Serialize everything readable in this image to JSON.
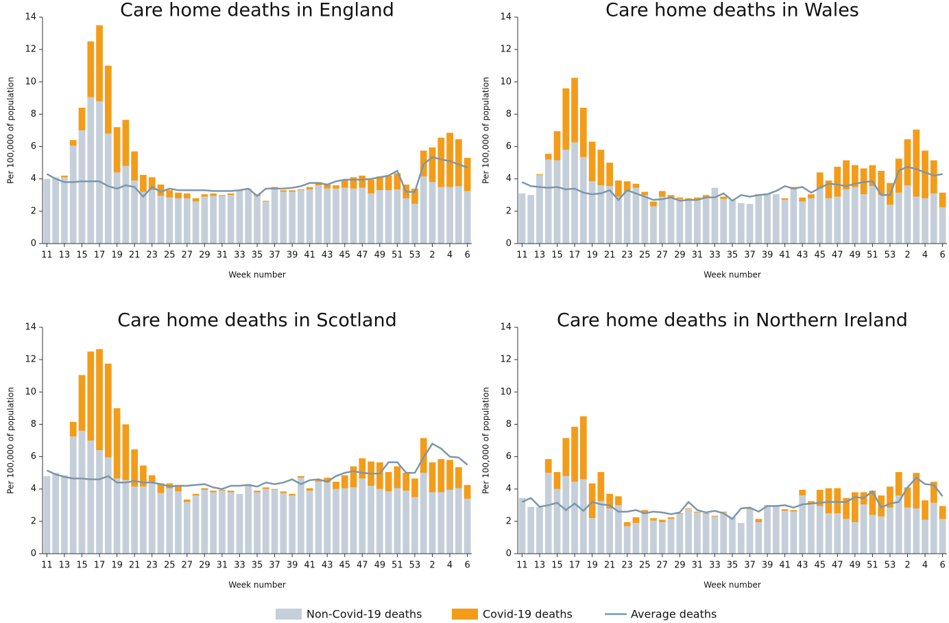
{
  "chart_data": [
    {
      "type": "bar",
      "title": "Care home deaths in England",
      "xlabel": "Week number",
      "ylabel": "Per 100,000 of population",
      "categories": [
        "11",
        null,
        "13",
        null,
        "15",
        null,
        "17",
        null,
        "19",
        null,
        "21",
        null,
        "23",
        null,
        "25",
        null,
        "27",
        null,
        "29",
        null,
        "31",
        null,
        "33",
        null,
        "35",
        null,
        "37",
        null,
        "39",
        null,
        "41",
        null,
        "43",
        null,
        "45",
        null,
        "47",
        null,
        "49",
        null,
        "51",
        null,
        "53",
        null,
        "2",
        null,
        "4",
        null,
        "6"
      ],
      "ylim": [
        0,
        14
      ],
      "yticks": [
        0,
        2,
        4,
        6,
        8,
        10,
        12,
        14
      ],
      "series": [
        {
          "name": "Non-Covid-19 deaths",
          "color": "#c4cfda",
          "values": [
            4.0,
            4.1,
            4.1,
            6.05,
            7.0,
            9.05,
            8.8,
            6.8,
            4.4,
            4.8,
            3.9,
            3.2,
            3.3,
            2.95,
            2.85,
            2.8,
            2.8,
            2.6,
            2.9,
            2.95,
            2.95,
            3.0,
            3.25,
            3.4,
            2.95,
            2.6,
            3.4,
            3.2,
            3.2,
            3.3,
            3.35,
            3.6,
            3.4,
            3.4,
            3.45,
            3.4,
            3.45,
            3.1,
            3.3,
            3.3,
            3.35,
            2.8,
            2.45,
            4.15,
            3.8,
            3.5,
            3.5,
            3.55,
            3.25
          ]
        },
        {
          "name": "Covid-19 deaths",
          "color": "#f39c1a",
          "values": [
            0,
            0,
            0.1,
            0.35,
            1.4,
            3.45,
            4.7,
            4.2,
            2.8,
            2.85,
            1.8,
            1.05,
            0.8,
            0.7,
            0.45,
            0.35,
            0.3,
            0.2,
            0.15,
            0.15,
            0.05,
            0.1,
            0.05,
            0,
            0.1,
            0.05,
            0.1,
            0.1,
            0.1,
            0.05,
            0.15,
            0.2,
            0.3,
            0.2,
            0.5,
            0.7,
            0.75,
            0.85,
            0.85,
            0.9,
            1.0,
            0.85,
            0.95,
            1.6,
            2.15,
            3.05,
            3.35,
            2.9,
            2.05
          ]
        },
        {
          "name": "Average deaths",
          "type": "line",
          "color": "#7b96aa",
          "values": [
            4.3,
            4.0,
            3.8,
            3.8,
            3.85,
            3.85,
            3.85,
            3.55,
            3.4,
            3.6,
            3.5,
            2.9,
            3.5,
            3.2,
            3.4,
            3.3,
            3.3,
            3.3,
            3.3,
            3.25,
            3.25,
            3.25,
            3.3,
            3.4,
            2.95,
            3.4,
            3.4,
            3.4,
            3.45,
            3.55,
            3.75,
            3.75,
            3.65,
            3.85,
            3.95,
            3.95,
            3.95,
            4.0,
            4.1,
            4.2,
            4.5,
            3.2,
            3.2,
            4.9,
            5.35,
            5.2,
            5.1,
            4.9,
            4.7
          ]
        }
      ]
    },
    {
      "type": "bar",
      "title": "Care home deaths in Wales",
      "xlabel": "Week number",
      "ylabel": "Per 100,000 of population",
      "categories": [
        "11",
        null,
        "13",
        null,
        "15",
        null,
        "17",
        null,
        "19",
        null,
        "21",
        null,
        "23",
        null,
        "25",
        null,
        "27",
        null,
        "29",
        null,
        "31",
        null,
        "33",
        null,
        "35",
        null,
        "37",
        null,
        "39",
        null,
        "41",
        null,
        "43",
        null,
        "45",
        null,
        "47",
        null,
        "49",
        null,
        "51",
        null,
        "53",
        null,
        "2",
        null,
        "4",
        null,
        "6"
      ],
      "ylim": [
        0,
        14
      ],
      "yticks": [
        0,
        2,
        4,
        6,
        8,
        10,
        12,
        14
      ],
      "series": [
        {
          "color": "#c4cfda",
          "values": [
            3.1,
            3.0,
            4.25,
            5.2,
            5.15,
            5.8,
            6.25,
            5.35,
            3.85,
            3.6,
            3.55,
            2.9,
            3.2,
            3.45,
            3.0,
            2.3,
            2.9,
            2.85,
            2.75,
            2.65,
            2.75,
            2.8,
            3.45,
            2.75,
            2.7,
            2.5,
            2.45,
            3.0,
            3.05,
            3.05,
            2.7,
            3.35,
            2.6,
            2.8,
            3.4,
            2.8,
            2.9,
            3.35,
            3.5,
            3.05,
            3.55,
            3.0,
            2.4,
            3.15,
            3.6,
            2.9,
            2.8,
            3.1,
            2.25
          ]
        },
        {
          "color": "#f39c1a",
          "values": [
            0,
            0,
            0.05,
            0.35,
            1.8,
            3.8,
            4.0,
            3.05,
            2.45,
            2.2,
            1.45,
            1.0,
            0.65,
            0.25,
            0.2,
            0.3,
            0.35,
            0.15,
            0.1,
            0.15,
            0.1,
            0.2,
            0,
            0.15,
            0,
            0,
            0,
            0.05,
            0.05,
            0,
            0.1,
            0.15,
            0.25,
            0.25,
            1.0,
            1.1,
            1.85,
            1.8,
            1.35,
            1.6,
            1.3,
            1.5,
            1.35,
            2.1,
            2.85,
            4.15,
            2.95,
            2.05,
            0.9
          ]
        },
        {
          "type": "line",
          "color": "#7b96aa",
          "values": [
            3.8,
            3.55,
            3.5,
            3.45,
            3.5,
            3.35,
            3.4,
            3.15,
            3.05,
            3.1,
            3.3,
            2.7,
            3.3,
            3.1,
            2.9,
            2.7,
            2.75,
            2.85,
            2.65,
            2.7,
            2.7,
            2.85,
            2.85,
            3.1,
            2.65,
            3.0,
            2.9,
            3.0,
            3.05,
            3.25,
            3.55,
            3.4,
            3.5,
            3.15,
            3.45,
            3.7,
            3.65,
            3.55,
            3.7,
            3.8,
            3.85,
            3.0,
            3.0,
            4.5,
            4.75,
            4.6,
            4.4,
            4.2,
            4.3
          ]
        }
      ]
    },
    {
      "type": "bar",
      "title": "Care home deaths in Scotland",
      "xlabel": "Week number",
      "ylabel": "Per 100,000 of population",
      "categories": [
        "11",
        null,
        "13",
        null,
        "15",
        null,
        "17",
        null,
        "19",
        null,
        "21",
        null,
        "23",
        null,
        "25",
        null,
        "27",
        null,
        "29",
        null,
        "31",
        null,
        "33",
        null,
        "35",
        null,
        "37",
        null,
        "39",
        null,
        "41",
        null,
        "43",
        null,
        "45",
        null,
        "47",
        null,
        "49",
        null,
        "51",
        null,
        "53",
        null,
        "2",
        null,
        "4",
        null,
        "6"
      ],
      "ylim": [
        0,
        14
      ],
      "yticks": [
        0,
        2,
        4,
        6,
        8,
        10,
        12,
        14
      ],
      "series": [
        {
          "color": "#c4cfda",
          "values": [
            4.8,
            5.0,
            4.85,
            7.25,
            7.6,
            7.0,
            6.4,
            5.95,
            4.65,
            4.55,
            4.15,
            4.15,
            4.35,
            3.75,
            4.05,
            3.85,
            3.2,
            3.6,
            3.95,
            3.8,
            3.9,
            3.8,
            3.7,
            4.2,
            3.8,
            4.0,
            3.95,
            3.75,
            3.6,
            4.7,
            3.9,
            4.45,
            4.4,
            4.0,
            4.05,
            4.1,
            4.65,
            4.2,
            4.0,
            3.85,
            4.05,
            3.9,
            3.5,
            5.0,
            3.8,
            3.8,
            3.95,
            4.05,
            3.4
          ]
        },
        {
          "color": "#f39c1a",
          "values": [
            0,
            0,
            0,
            0.9,
            3.45,
            5.5,
            6.25,
            5.8,
            4.35,
            3.45,
            2.3,
            1.3,
            0.5,
            0.6,
            0.3,
            0.4,
            0.15,
            0.1,
            0.1,
            0.1,
            0.05,
            0.1,
            0,
            0.1,
            0.1,
            0.1,
            0.05,
            0.1,
            0.1,
            0.1,
            0.15,
            0.1,
            0.3,
            0.45,
            0.8,
            1.3,
            1.25,
            1.5,
            1.65,
            1.2,
            1.35,
            1.1,
            1.15,
            2.15,
            1.85,
            2.05,
            1.85,
            1.3,
            0.85
          ]
        },
        {
          "type": "line",
          "color": "#7b96aa",
          "values": [
            5.15,
            4.9,
            4.75,
            4.65,
            4.65,
            4.6,
            4.6,
            4.8,
            4.4,
            4.4,
            4.5,
            4.4,
            4.4,
            4.3,
            4.15,
            4.2,
            4.2,
            4.25,
            4.3,
            4.1,
            4.0,
            4.2,
            4.2,
            4.25,
            4.15,
            4.4,
            4.3,
            4.4,
            4.6,
            4.3,
            4.55,
            4.6,
            4.45,
            4.8,
            5.0,
            5.1,
            5.0,
            4.95,
            4.95,
            5.65,
            5.65,
            5.0,
            5.0,
            5.95,
            6.8,
            6.5,
            6.0,
            5.95,
            5.5
          ]
        }
      ]
    },
    {
      "type": "bar",
      "title": "Care home deaths in Northern Ireland",
      "xlabel": "Week number",
      "ylabel": "Per 100,000 of population",
      "categories": [
        "11",
        null,
        "13",
        null,
        "15",
        null,
        "17",
        null,
        "19",
        null,
        "21",
        null,
        "23",
        null,
        "25",
        null,
        "27",
        null,
        "29",
        null,
        "31",
        null,
        "33",
        null,
        "35",
        null,
        "37",
        null,
        "39",
        null,
        "41",
        null,
        "43",
        null,
        "45",
        null,
        "47",
        null,
        "49",
        null,
        "51",
        null,
        "53",
        null,
        "2",
        null,
        "4",
        null,
        "6"
      ],
      "ylim": [
        0,
        14
      ],
      "yticks": [
        0,
        2,
        4,
        6,
        8,
        10,
        12,
        14
      ],
      "series": [
        {
          "color": "#c4cfda",
          "values": [
            3.45,
            2.9,
            2.9,
            5.0,
            4.0,
            4.8,
            4.45,
            4.6,
            2.2,
            3.25,
            2.8,
            3.0,
            1.7,
            1.9,
            2.45,
            2.05,
            1.95,
            2.15,
            2.45,
            2.75,
            2.55,
            2.45,
            2.3,
            2.55,
            2.25,
            1.9,
            2.75,
            1.95,
            2.95,
            2.95,
            2.65,
            2.6,
            3.6,
            3.05,
            2.95,
            2.5,
            2.5,
            2.15,
            1.95,
            3.05,
            2.4,
            2.3,
            2.85,
            3.6,
            2.85,
            2.8,
            2.1,
            3.15,
            2.15
          ]
        },
        {
          "color": "#f39c1a",
          "values": [
            0,
            0,
            0,
            0.85,
            1.05,
            2.35,
            3.4,
            3.9,
            2.15,
            1.8,
            0.9,
            0.55,
            0.25,
            0.35,
            0.25,
            0.15,
            0.15,
            0.1,
            0.05,
            0.05,
            0.05,
            0.05,
            0.05,
            0.05,
            0,
            0,
            0.05,
            0.2,
            0.05,
            0.05,
            0.1,
            0.1,
            0.35,
            0.2,
            1.0,
            1.55,
            1.55,
            1.3,
            1.85,
            0.75,
            1.5,
            1.3,
            1.3,
            1.45,
            1.25,
            2.2,
            1.2,
            1.3,
            0.8
          ]
        },
        {
          "type": "line",
          "color": "#7b96aa",
          "values": [
            3.2,
            3.45,
            2.9,
            3.0,
            3.15,
            2.7,
            3.1,
            2.65,
            3.2,
            3.05,
            3.0,
            2.6,
            2.6,
            2.7,
            2.5,
            2.6,
            2.55,
            2.45,
            2.55,
            3.2,
            2.7,
            2.55,
            2.65,
            2.5,
            2.15,
            2.8,
            2.85,
            2.6,
            2.95,
            2.95,
            3.0,
            2.85,
            3.05,
            3.1,
            3.15,
            3.2,
            3.2,
            3.2,
            3.5,
            3.45,
            3.85,
            2.85,
            3.1,
            3.2,
            4.1,
            4.7,
            4.3,
            4.25,
            3.55
          ]
        }
      ]
    }
  ]
}
